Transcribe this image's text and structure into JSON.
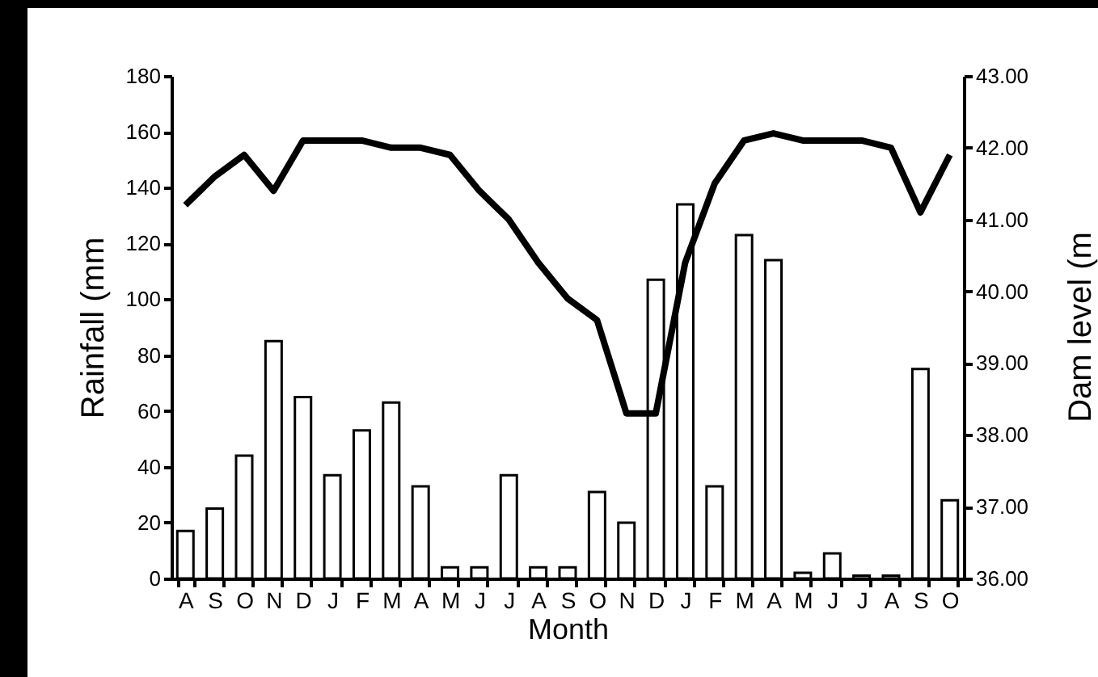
{
  "chart_data": {
    "type": "bar",
    "xlabel": "Month",
    "ylabel": "Rainfall (mm",
    "y2label": "Dam level (m",
    "categories": [
      "A",
      "S",
      "O",
      "N",
      "D",
      "J",
      "F",
      "M",
      "A",
      "M",
      "J",
      "J",
      "A",
      "S",
      "O",
      "N",
      "D",
      "J",
      "F",
      "M",
      "A",
      "M",
      "J",
      "J",
      "A",
      "S",
      "O"
    ],
    "series": [
      {
        "color": "#ffffff",
        "values": [
          17,
          25,
          44,
          85,
          65,
          37,
          53,
          63,
          33,
          4,
          4,
          37,
          4,
          4,
          31,
          20,
          107,
          134,
          33,
          123,
          114,
          2,
          9,
          1,
          1,
          75,
          28
        ]
      },
      {
        "type": "line",
        "axis": "y2",
        "color": "#000000",
        "values": [
          41.2,
          41.6,
          41.9,
          41.4,
          42.1,
          42.1,
          42.1,
          42.0,
          42.0,
          41.9,
          41.4,
          41.0,
          40.4,
          39.9,
          39.6,
          38.3,
          38.3,
          40.4,
          41.5,
          42.1,
          42.2,
          42.1,
          42.1,
          42.1,
          42.0,
          41.1,
          41.9
        ]
      }
    ],
    "ylim": [
      0,
      180
    ],
    "yticks": [
      0,
      20,
      40,
      60,
      80,
      100,
      120,
      140,
      160,
      180
    ],
    "y2lim": [
      36,
      43
    ],
    "y2ticks": [
      {
        "value": 36,
        "label": "36.00"
      },
      {
        "value": 37,
        "label": "37.00"
      },
      {
        "value": 38,
        "label": "38.00"
      },
      {
        "value": 39,
        "label": "39.00"
      },
      {
        "value": 40,
        "label": "40.00"
      },
      {
        "value": 41,
        "label": "41.00"
      },
      {
        "value": 42,
        "label": "42.00"
      },
      {
        "value": 43,
        "label": "43.00"
      }
    ],
    "grid": false,
    "marker": "none",
    "line_style": "solid"
  }
}
